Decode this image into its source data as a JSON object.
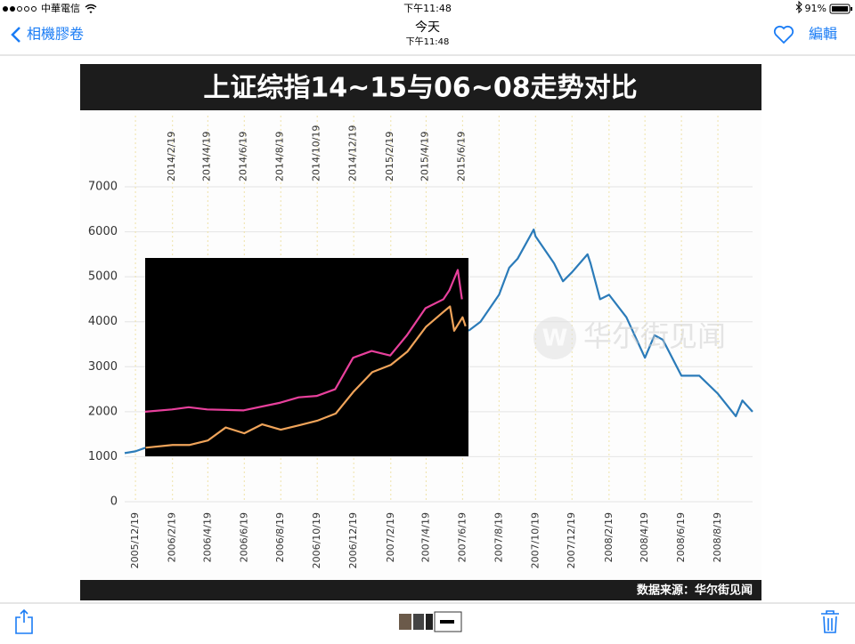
{
  "status_bar": {
    "carrier": "中華電信",
    "time": "下午11:48",
    "battery": "91%"
  },
  "nav_bar": {
    "back": "相機膠卷",
    "title": "今天",
    "subtitle": "下午11:48",
    "edit": "編輯"
  },
  "chart_data": {
    "type": "line",
    "title": "上证综指14~15与06~08走势对比",
    "source": "数据来源：华尔街见闻",
    "watermark": "华尔街见闻",
    "xlim": [
      "2005/12/1",
      "2008/10/16"
    ],
    "xticks": [
      "2005/12/19",
      "2006/2/19",
      "2006/4/19",
      "2006/6/19",
      "2006/8/19",
      "2006/10/19",
      "2006/12/19",
      "2007/2/19",
      "2007/4/19",
      "2007/6/19",
      "2007/8/19",
      "2007/10/19",
      "2007/12/19",
      "2008/2/19",
      "2008/4/19",
      "2008/6/19",
      "2008/8/19"
    ],
    "x2lim": [
      "2013/12/2",
      "2016/10/17"
    ],
    "x2ticks": [
      "2014/2/19",
      "2014/4/19",
      "2014/6/19",
      "2014/8/19",
      "2014/10/19",
      "2014/12/19",
      "2015/2/19",
      "2015/4/19",
      "2015/6/19"
    ],
    "ylim": [
      0,
      7000
    ],
    "yticks": [
      0,
      1000,
      2000,
      3000,
      4000,
      5000,
      6000,
      7000
    ],
    "grid": true,
    "series": [
      {
        "color": "#2b7bb9",
        "x": [
          "2005/12/1",
          "2005/12/19",
          "2006/1/5",
          "2007/6/24",
          "2007/6/29",
          "2007/7/19",
          "2007/8/19",
          "2007/9/5",
          "2007/9/19",
          "2007/10/16",
          "2007/10/19",
          "2007/11/19",
          "2007/12/4",
          "2007/12/19",
          "2008/1/14",
          "2008/1/19",
          "2008/2/4",
          "2008/2/19",
          "2008/3/19",
          "2008/4/19",
          "2008/5/5",
          "2008/5/19",
          "2008/6/19",
          "2008/7/19",
          "2008/8/19",
          "2008/9/18",
          "2008/9/29",
          "2008/10/16"
        ],
        "values": [
          1080,
          1120,
          1200,
          null,
          3800,
          4000,
          4600,
          5200,
          5400,
          6050,
          5900,
          5300,
          4900,
          5100,
          5500,
          5300,
          4500,
          4600,
          4100,
          3200,
          3700,
          3600,
          2800,
          2800,
          2400,
          1900,
          2250,
          2000
        ]
      },
      {
        "color": "#f0a45a",
        "x": [
          "2006/1/5",
          "2006/2/19",
          "2006/3/19",
          "2006/4/19",
          "2006/5/19",
          "2006/6/19",
          "2006/7/19",
          "2006/8/19",
          "2006/9/19",
          "2006/10/19",
          "2006/11/19",
          "2006/12/19",
          "2007/1/19",
          "2007/2/19",
          "2007/3/19",
          "2007/4/19",
          "2007/5/19",
          "2007/5/29",
          "2007/6/5",
          "2007/6/19",
          "2007/6/24"
        ],
        "values": [
          1200,
          1260,
          1260,
          1360,
          1650,
          1520,
          1720,
          1600,
          1700,
          1800,
          1960,
          2450,
          2880,
          3040,
          3340,
          3890,
          4230,
          4340,
          3800,
          4100,
          3900
        ]
      },
      {
        "color": "#e8409c",
        "axis": "x2",
        "x": [
          "2014/1/5",
          "2014/2/19",
          "2014/3/19",
          "2014/4/19",
          "2014/6/19",
          "2014/8/19",
          "2014/9/19",
          "2014/10/19",
          "2014/11/19",
          "2014/12/19",
          "2015/1/19",
          "2015/2/19",
          "2015/3/19",
          "2015/4/19",
          "2015/5/19",
          "2015/5/29",
          "2015/6/12",
          "2015/6/19"
        ],
        "values": [
          2000,
          2050,
          2100,
          2050,
          2030,
          2200,
          2320,
          2350,
          2500,
          3200,
          3350,
          3250,
          3700,
          4300,
          4500,
          4700,
          5150,
          4500
        ]
      }
    ]
  }
}
